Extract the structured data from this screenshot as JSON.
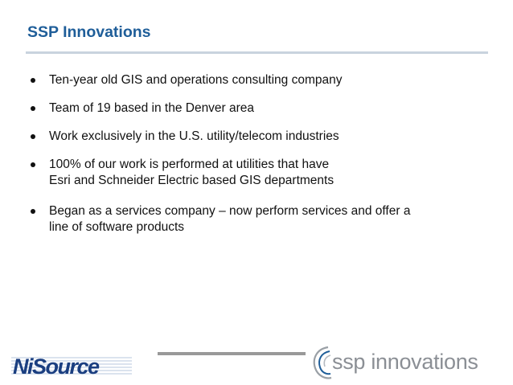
{
  "slide": {
    "title": "SSP Innovations",
    "bullets": [
      {
        "lines": [
          "Ten-year old GIS and operations consulting company"
        ]
      },
      {
        "lines": [
          "Team of 19 based in the Denver area"
        ]
      },
      {
        "lines": [
          "Work exclusively in the U.S. utility/telecom industries"
        ]
      },
      {
        "lines": [
          "100% of our work is performed at utilities that have",
          "Esri and Schneider Electric based GIS departments"
        ]
      },
      {
        "lines": [
          "Began as a services company – now perform services and offer a",
          "line of software products"
        ]
      }
    ]
  },
  "footer": {
    "left_logo": "NiSource",
    "right_logo": "ssp innovations"
  },
  "colors": {
    "title": "#1f5e99",
    "nisource_blue": "#1a3e80",
    "ssp_gray": "#8b8f95"
  }
}
